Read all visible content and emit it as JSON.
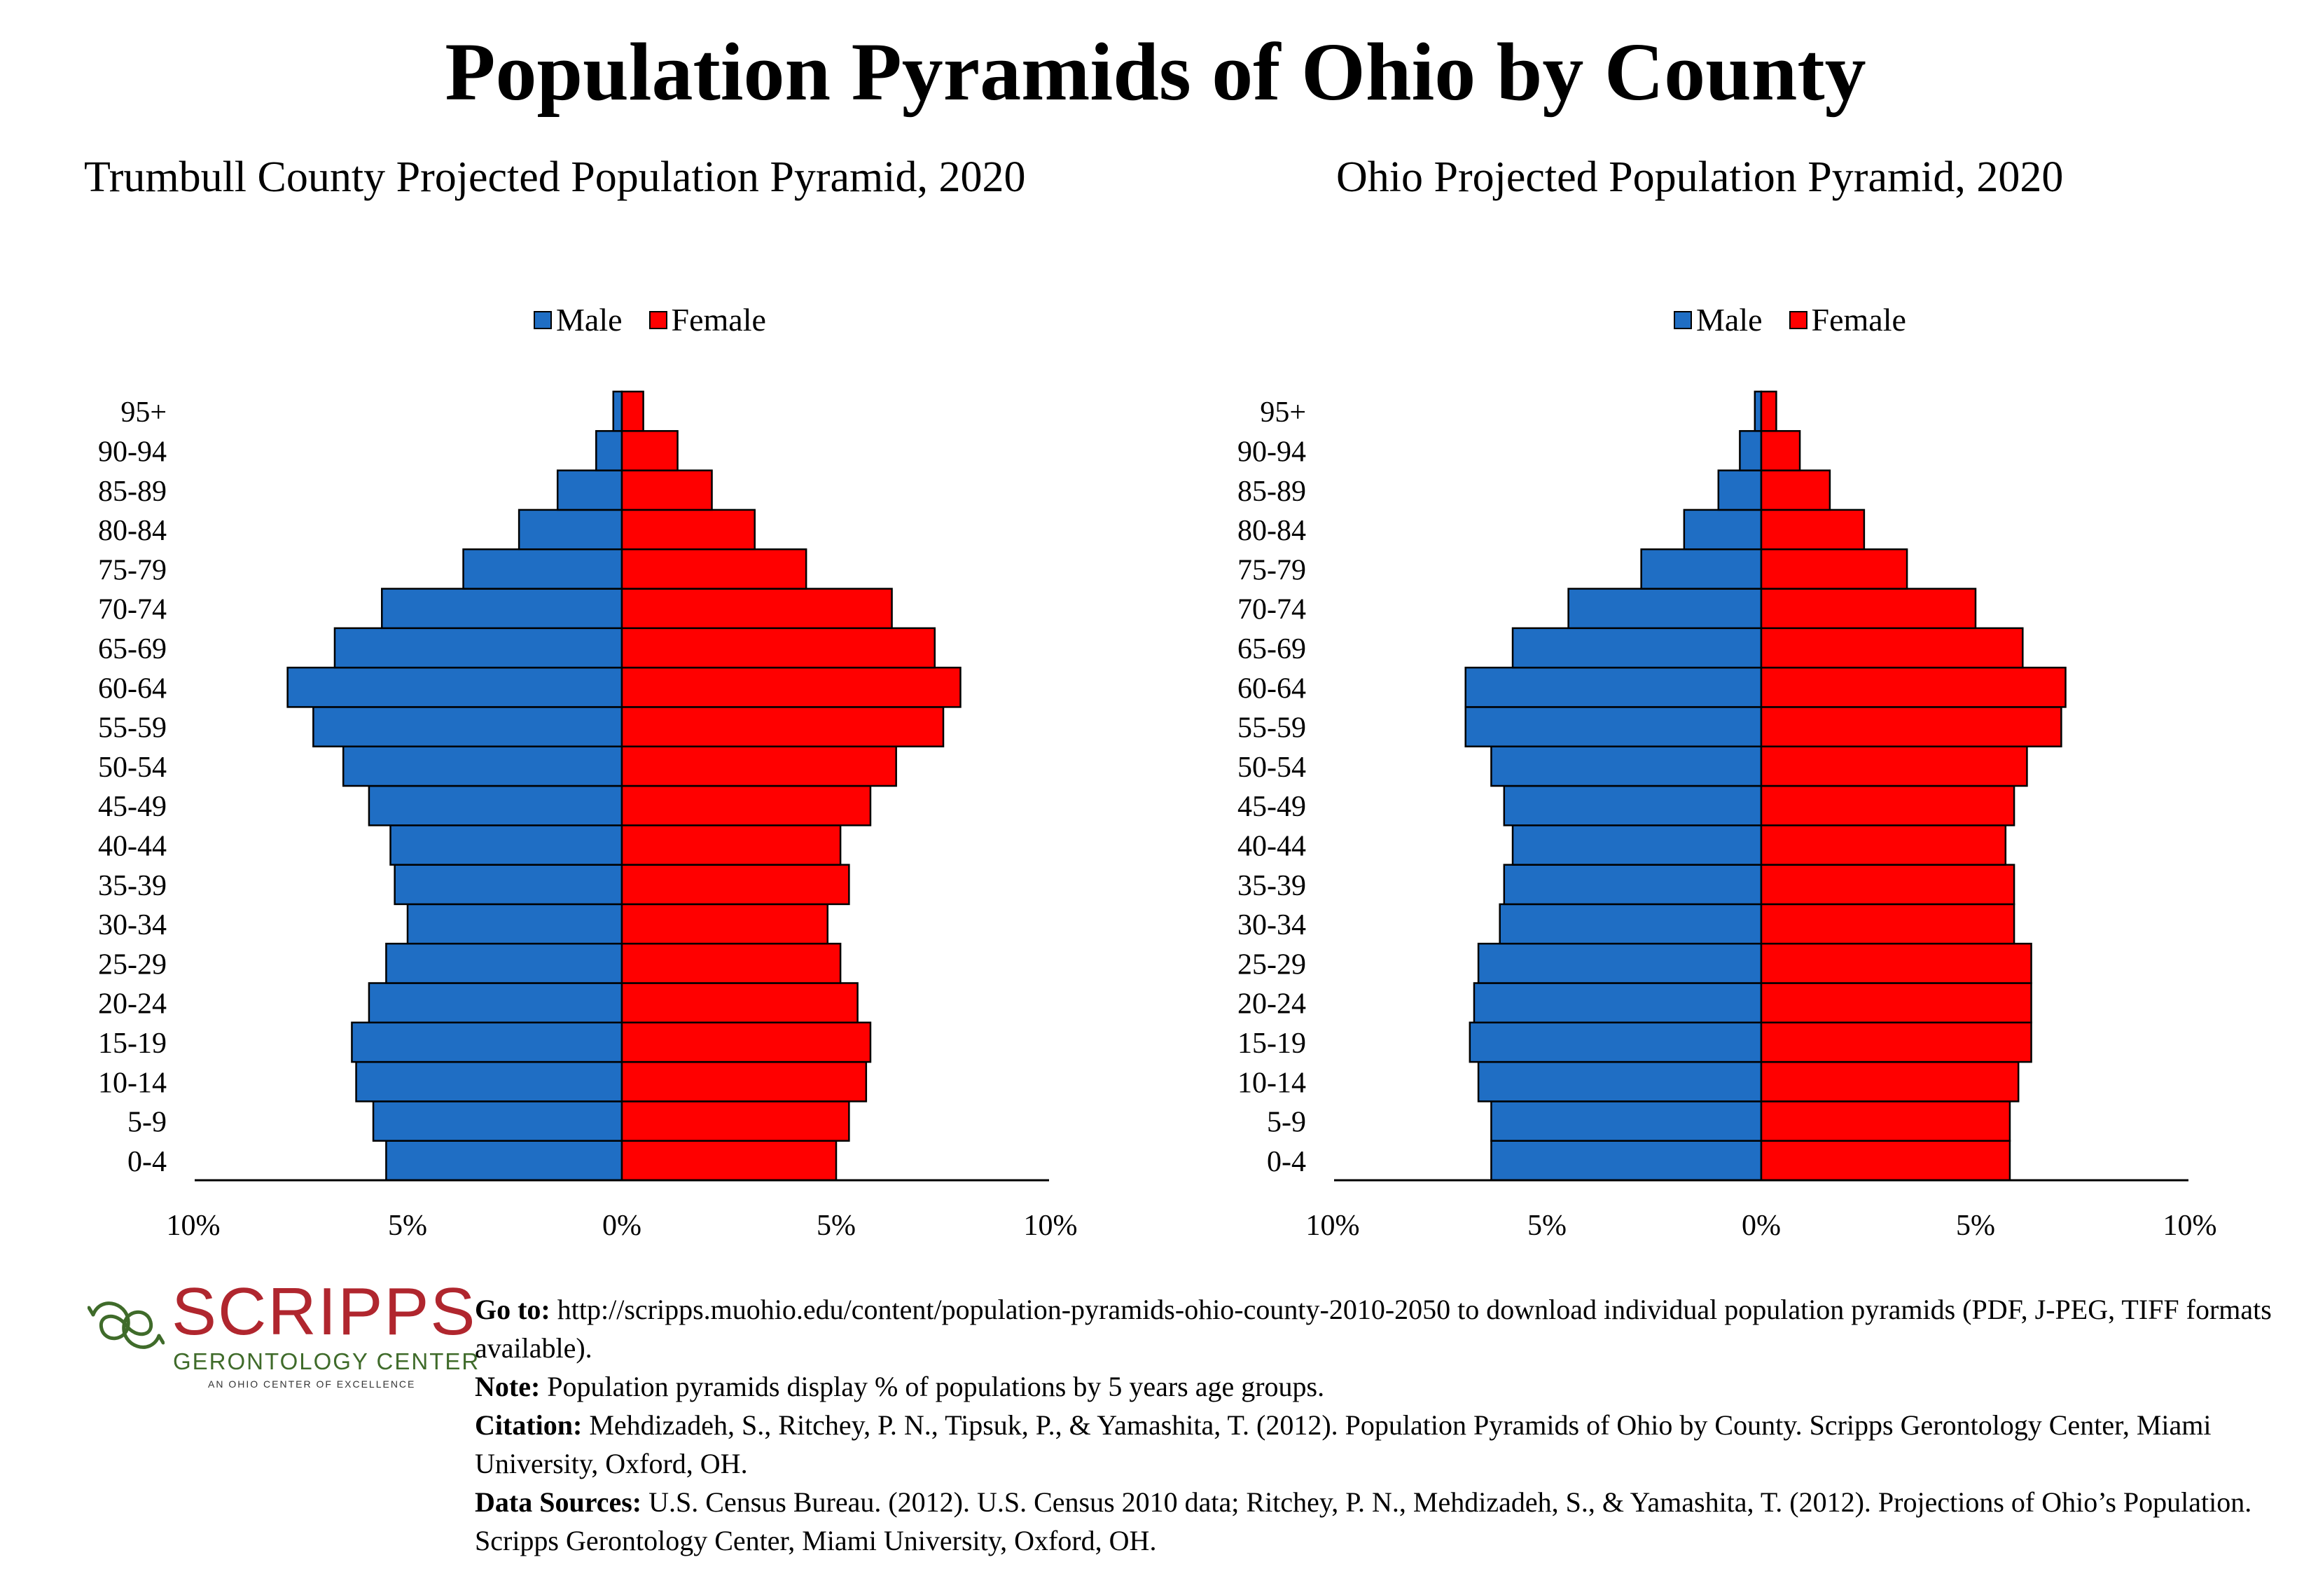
{
  "title": "Population Pyramids of Ohio by County",
  "legend": {
    "male": "Male",
    "female": "Female"
  },
  "colors": {
    "male": "#1f6ec4",
    "female": "#ff0000"
  },
  "chart_data": [
    {
      "type": "bar",
      "title": "Trumbull County Projected Population Pyramid, 2020",
      "categories": [
        "0-4",
        "5-9",
        "10-14",
        "15-19",
        "20-24",
        "25-29",
        "30-34",
        "35-39",
        "40-44",
        "45-49",
        "50-54",
        "55-59",
        "60-64",
        "65-69",
        "70-74",
        "75-79",
        "80-84",
        "85-89",
        "90-94",
        "95+"
      ],
      "series": [
        {
          "name": "Male",
          "values": [
            5.5,
            5.8,
            6.2,
            6.3,
            5.9,
            5.5,
            5.0,
            5.3,
            5.4,
            5.9,
            6.5,
            7.2,
            7.8,
            6.7,
            5.6,
            3.7,
            2.4,
            1.5,
            0.6,
            0.2
          ]
        },
        {
          "name": "Female",
          "values": [
            5.0,
            5.3,
            5.7,
            5.8,
            5.5,
            5.1,
            4.8,
            5.3,
            5.1,
            5.8,
            6.4,
            7.5,
            7.9,
            7.3,
            6.3,
            4.3,
            3.1,
            2.1,
            1.3,
            0.5
          ]
        }
      ],
      "xlim": [
        -10,
        10
      ],
      "xticks": [
        "10%",
        "5%",
        "0%",
        "5%",
        "10%"
      ],
      "legend_position": "top-center",
      "grid": false
    },
    {
      "type": "bar",
      "title": "Ohio Projected Population Pyramid, 2020",
      "categories": [
        "0-4",
        "5-9",
        "10-14",
        "15-19",
        "20-24",
        "25-29",
        "30-34",
        "35-39",
        "40-44",
        "45-49",
        "50-54",
        "55-59",
        "60-64",
        "65-69",
        "70-74",
        "75-79",
        "80-84",
        "85-89",
        "90-94",
        "95+"
      ],
      "series": [
        {
          "name": "Male",
          "values": [
            6.3,
            6.3,
            6.6,
            6.8,
            6.7,
            6.6,
            6.1,
            6.0,
            5.8,
            6.0,
            6.3,
            6.9,
            6.9,
            5.8,
            4.5,
            2.8,
            1.8,
            1.0,
            0.5,
            0.15
          ]
        },
        {
          "name": "Female",
          "values": [
            5.8,
            5.8,
            6.0,
            6.3,
            6.3,
            6.3,
            5.9,
            5.9,
            5.7,
            5.9,
            6.2,
            7.0,
            7.1,
            6.1,
            5.0,
            3.4,
            2.4,
            1.6,
            0.9,
            0.35
          ]
        }
      ],
      "xlim": [
        -10,
        10
      ],
      "xticks": [
        "10%",
        "5%",
        "0%",
        "5%",
        "10%"
      ],
      "legend_position": "top-center",
      "grid": false
    }
  ],
  "logo": {
    "name": "SCRIPPS",
    "subtitle": "GERONTOLOGY CENTER",
    "tagline": "AN OHIO CENTER OF EXCELLENCE"
  },
  "notes": {
    "goto_label": "Go to:",
    "goto_text": " http://scripps.muohio.edu/content/population-pyramids-ohio-county-2010-2050 to download individual population pyramids (PDF, J-PEG, TIFF formats available).",
    "note_label": "Note:",
    "note_text": " Population pyramids display % of populations by 5 years age groups.",
    "citation_label": "Citation:",
    "citation_text": " Mehdizadeh, S., Ritchey, P. N., Tipsuk, P., & Yamashita, T. (2012). Population Pyramids of Ohio by County. Scripps Gerontology Center, Miami University, Oxford, OH.",
    "sources_label": "Data Sources:",
    "sources_text": " U.S. Census Bureau. (2012). U.S. Census 2010 data; Ritchey, P. N., Mehdizadeh, S., & Yamashita, T. (2012). Projections of Ohio’s Population. Scripps Gerontology Center, Miami University, Oxford, OH."
  }
}
